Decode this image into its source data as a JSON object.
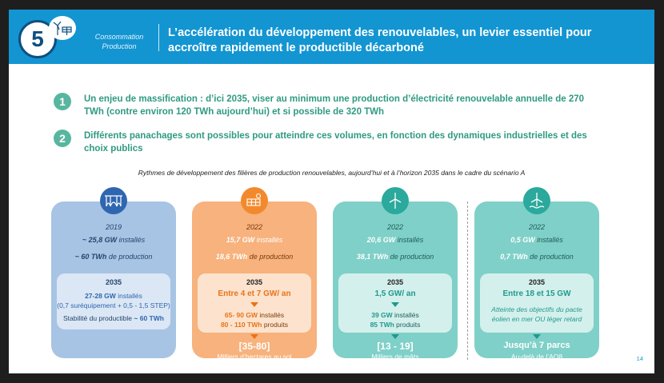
{
  "header": {
    "section_number": "5",
    "category_line1": "Consommation",
    "category_line2": "Production",
    "title_line1": "L’accélération du développement des renouvelables, un levier essentiel pour",
    "title_line2": "accroître rapidement le productible décarboné",
    "colors": {
      "bar": "#1395d2",
      "badge_ring": "#0f4f80"
    },
    "icons": [
      "wind-solar-icon"
    ]
  },
  "points": [
    {
      "number": "1",
      "line1": "Un enjeu de massification : d’ici 2035, viser au minimum une production d’électricité renouvelable annuelle de 270",
      "line2": "TWh (contre environ 120 TWh aujourd’hui) et si possible de 320 TWh"
    },
    {
      "number": "2",
      "line1": "Différents panachages sont possibles pour atteindre ces volumes, en fonction des dynamiques industrielles et des",
      "line2": "choix publics"
    }
  ],
  "caption": "Rythmes de développement des filières de production renouvelables, aujourd’hui et à l’horizon 2035 dans le cadre du scénario A",
  "cards": [
    {
      "icon": "hydro-dam-icon",
      "color": "#a7c4e4",
      "year": "2019",
      "installed_value": "~ 25,8 GW",
      "installed_unit": "installés",
      "production_value": "~ 60 TWh",
      "production_unit": "de production",
      "target_label": "2035",
      "target_main": "27-28 GW",
      "target_main_unit": "installés",
      "target_detail": "(0,7 suréquipement + 0,5 - 1,5 STEP)",
      "target_extra": "Stabilité du productible",
      "target_extra_value": "~ 60 TWh"
    },
    {
      "icon": "solar-panel-icon",
      "color": "#f7b27d",
      "year": "2022",
      "installed_value": "15,7 GW",
      "installed_unit": "installés",
      "production_value": "18,6 TWh",
      "production_unit": "de production",
      "target_label": "2035",
      "target_main": "Entre 4 et 7 GW/ an",
      "arrow_line1_value": "65- 90 GW",
      "arrow_line1_unit": "installés",
      "arrow_line2_value": "80 - 110 TWh",
      "arrow_line2_unit": "produits",
      "footer_value": "[35-80]",
      "footer_label": "Milliers d’hectares au sol"
    },
    {
      "icon": "onshore-wind-icon",
      "color": "#7fd0c8",
      "year": "2022",
      "installed_value": "20,6 GW",
      "installed_unit": "installés",
      "production_value": "38,1 TWh",
      "production_unit": "de production",
      "target_label": "2035",
      "target_main": "1,5 GW/ an",
      "arrow_line1_value": "39 GW",
      "arrow_line1_unit": "installés",
      "arrow_line2_value": "85 TWh",
      "arrow_line2_unit": "produits",
      "footer_value": "[13 - 19]",
      "footer_label": "Milliers de mâts"
    },
    {
      "icon": "offshore-wind-icon",
      "color": "#7fd0c8",
      "year": "2022",
      "installed_value": "0,5 GW",
      "installed_unit": "installés",
      "production_value": "0,7 TWh",
      "production_unit": "de production",
      "target_label": "2035",
      "target_main": "Entre 18 et 15 GW",
      "target_note_line1": "Atteinte des objectifs du pacte",
      "target_note_line2": "éolien en mer OU léger retard",
      "footer_value": "Jusqu’à 7 parcs",
      "footer_label": "Au-delà de l’AO8"
    }
  ],
  "page_number": "14"
}
